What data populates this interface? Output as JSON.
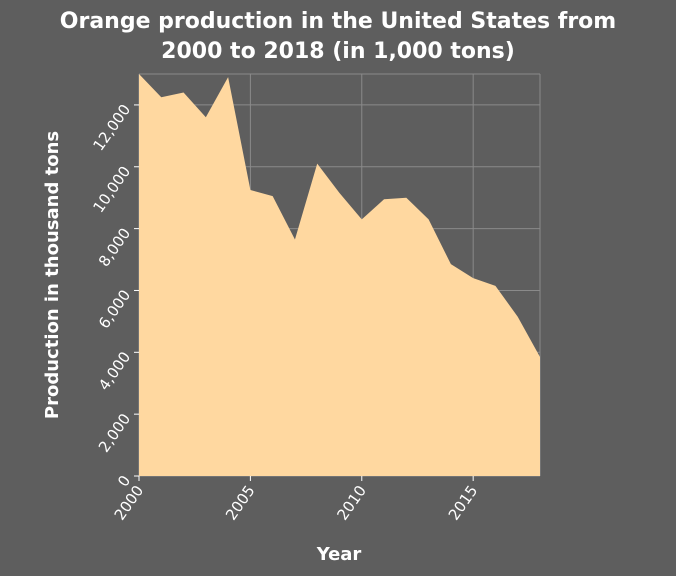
{
  "chart_data": {
    "type": "area",
    "title_lines": [
      "Orange production in the United States from",
      "2000 to 2018 (in 1,000 tons)"
    ],
    "xlabel": "Year",
    "ylabel": "Production in thousand tons",
    "xlim": [
      2000,
      2018
    ],
    "ylim": [
      0,
      13000
    ],
    "x_ticks": [
      2000,
      2005,
      2010,
      2015
    ],
    "x_tick_labels": [
      "2000",
      "2005",
      "2010",
      "2015"
    ],
    "y_ticks": [
      0,
      2000,
      4000,
      6000,
      8000,
      10000,
      12000
    ],
    "y_tick_labels": [
      "0",
      "2,000",
      "4,000",
      "6,000",
      "8,000",
      "10,000",
      "12,000"
    ],
    "grid": true,
    "series": [
      {
        "x": [
          2000,
          2001,
          2002,
          2003,
          2004,
          2005,
          2006,
          2007,
          2008,
          2009,
          2010,
          2011,
          2012,
          2013,
          2014,
          2015,
          2016,
          2017,
          2018
        ],
        "values": [
          13000,
          12250,
          12400,
          11600,
          12900,
          9250,
          9050,
          7650,
          10100,
          9150,
          8300,
          8950,
          9000,
          8300,
          6850,
          6400,
          6150,
          5150,
          3850
        ]
      }
    ],
    "colors": {
      "background": "#5e5e5e",
      "fill": "#ffd8a0",
      "grid": "#8a8a8a",
      "text": "#ffffff"
    }
  }
}
